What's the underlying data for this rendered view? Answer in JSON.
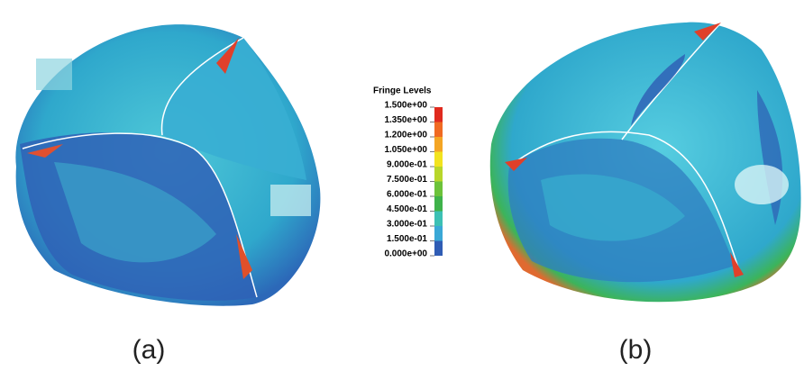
{
  "legend": {
    "title": "Fringe Levels",
    "labels": [
      "1.500e+00",
      "1.350e+00",
      "1.200e+00",
      "1.050e+00",
      "9.000e-01",
      "7.500e-01",
      "6.000e-01",
      "4.500e-01",
      "3.000e-01",
      "1.500e-01",
      "0.000e+00"
    ],
    "colors": [
      "#e02a1e",
      "#f06a22",
      "#f4a524",
      "#f2e31e",
      "#b8d62a",
      "#6cc23a",
      "#3fb24a",
      "#3cc0b4",
      "#3aa8d6",
      "#2f5cb4",
      "#2c2c8c"
    ]
  },
  "panels": [
    "(a)",
    "(b)"
  ]
}
